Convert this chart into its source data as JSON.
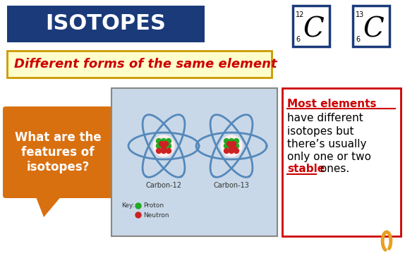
{
  "bg_color": "#ffffff",
  "title_text": "ISOTOPES",
  "title_bg": "#1a3a7a",
  "title_fg": "#ffffff",
  "subtitle_text": "Different forms of the same element",
  "subtitle_bg": "#ffffcc",
  "subtitle_border": "#cc9900",
  "subtitle_color": "#cc0000",
  "orange_box_text": "What are the\nfeatures of\nisotopes?",
  "orange_box_color": "#d97010",
  "right_text_line1": "Most elements",
  "right_text_line2": "have different",
  "right_text_line3": "isotopes but",
  "right_text_line4": "there’s usually",
  "right_text_line5": "only one or two",
  "right_text_line6_red": "stable",
  "right_text_line6_black": " ones.",
  "right_box_border": "#cc0000",
  "atom_box_bg": "#c8d8e8",
  "c12_label": "Carbon-12",
  "c13_label": "Carbon-13",
  "key_proton": "Proton",
  "key_neutron": "Neutron",
  "element_box1_mass": "12",
  "element_box1_symbol": "C",
  "element_box1_atomic": "6",
  "element_box2_mass": "13",
  "element_box2_symbol": "C",
  "element_box2_atomic": "6",
  "element_box_border": "#1a3a7a",
  "orbit_color": "#5588bb",
  "proton_color": "#22aa22",
  "neutron_color": "#cc2222",
  "squiggle_color": "#e8a020"
}
